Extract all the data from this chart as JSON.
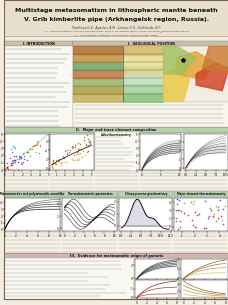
{
  "title_line1": "Multistage metasomatism in lithospheric mantle beneath",
  "title_line2": "V. Grib kimberlite pipe (Arkhangelsk region, Russia).",
  "authors": "Pashkova G.V., Agashev A.M., Litasov K.D., Pokhilenko N.P.",
  "affiliation1": "V. S. Sobolev Institute of Geology and Mineralogy, SB RAS, Novosibirsk, Russia; e-mail: pashkova@diamond.ipgg.sbras.ru",
  "affiliation2": "** - A.P.Vinogradov Institute of Geochemistry, SB RAS, Irkutsk, Russia",
  "bg_color": "#f2ede0",
  "header_color": "#e8e0cc",
  "title_color": "#111111",
  "sec_II_color": "#d8e8d0",
  "sec_III_color": "#e8d8d0",
  "intro_color": "#c8c0a8",
  "geo_color": "#c8c0a8",
  "white_box": "#ffffff",
  "text_line_color": "#555555",
  "scatter_colors": [
    "#cc2222",
    "#2244cc",
    "#22aa22",
    "#dd8822",
    "#aa22aa",
    "#22aaaa"
  ],
  "orange_scatter": [
    "#e8a030",
    "#c88020",
    "#a86010",
    "#886000"
  ],
  "gray_line": "#606060",
  "dark_line": "#151515"
}
